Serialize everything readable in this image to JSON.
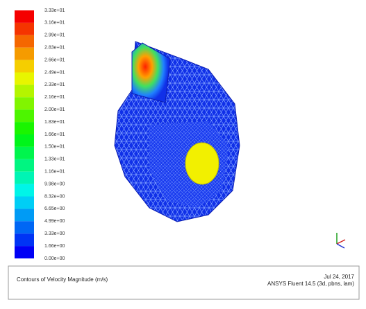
{
  "legend": {
    "labels": [
      "3.33e+01",
      "3.16e+01",
      "2.99e+01",
      "2.83e+01",
      "2.66e+01",
      "2.49e+01",
      "2.33e+01",
      "2.16e+01",
      "2.00e+01",
      "1.83e+01",
      "1.66e+01",
      "1.50e+01",
      "1.33e+01",
      "1.16e+01",
      "9.98e+00",
      "8.32e+00",
      "6.65e+00",
      "4.99e+00",
      "3.33e+00",
      "1.66e+00",
      "0.00e+00"
    ]
  },
  "footer": {
    "title": "Contours of Velocity Magnitude (m/s)",
    "date": "Jul 24, 2017",
    "software": "ANSYS Fluent 14.5 (3d, pbns, lam)"
  }
}
